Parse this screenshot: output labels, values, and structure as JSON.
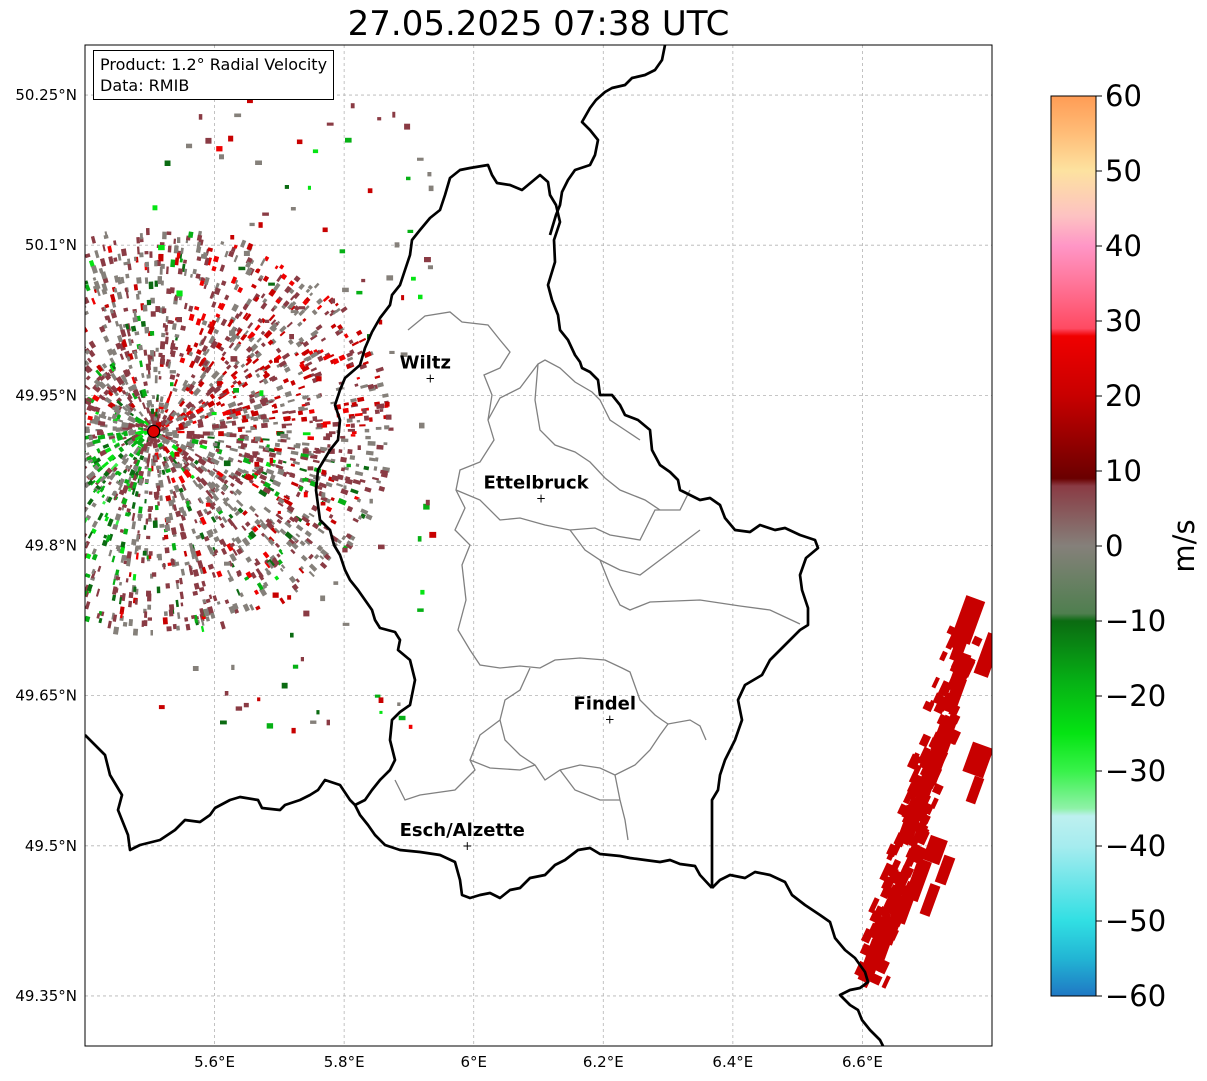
{
  "title": "27.05.2025 07:38 UTC",
  "info": {
    "product": "Product: 1.2° Radial Velocity",
    "source": "Data: RMIB"
  },
  "map": {
    "lon_range": [
      5.4,
      6.8
    ],
    "lat_range": [
      49.3,
      50.3
    ],
    "lon_ticks": [
      {
        "value": 5.6,
        "label": "5.6°E"
      },
      {
        "value": 5.8,
        "label": "5.8°E"
      },
      {
        "value": 6.0,
        "label": "6°E"
      },
      {
        "value": 6.2,
        "label": "6.2°E"
      },
      {
        "value": 6.4,
        "label": "6.4°E"
      },
      {
        "value": 6.6,
        "label": "6.6°E"
      }
    ],
    "lat_ticks": [
      {
        "value": 50.25,
        "label": "50.25°N"
      },
      {
        "value": 50.1,
        "label": "50.1°N"
      },
      {
        "value": 49.95,
        "label": "49.95°N"
      },
      {
        "value": 49.8,
        "label": "49.8°N"
      },
      {
        "value": 49.65,
        "label": "49.65°N"
      },
      {
        "value": 49.5,
        "label": "49.5°N"
      },
      {
        "value": 49.35,
        "label": "49.35°N"
      }
    ],
    "grid": true,
    "cities": [
      {
        "name": "Wiltz",
        "lon": 5.933,
        "lat": 49.967
      },
      {
        "name": "Ettelbruck",
        "lon": 6.104,
        "lat": 49.847
      },
      {
        "name": "Findel",
        "lon": 6.21,
        "lat": 49.626
      },
      {
        "name": "Esch/Alzette",
        "lon": 5.99,
        "lat": 49.5
      }
    ],
    "radar_site": {
      "lon": 5.506,
      "lat": 49.914
    }
  },
  "colorbar": {
    "label": "m/s",
    "min": -60,
    "max": 60,
    "ticks": [
      {
        "value": 60,
        "label": "60"
      },
      {
        "value": 50,
        "label": "50"
      },
      {
        "value": 40,
        "label": "40"
      },
      {
        "value": 30,
        "label": "30"
      },
      {
        "value": 20,
        "label": "20"
      },
      {
        "value": 10,
        "label": "10"
      },
      {
        "value": 0,
        "label": "0"
      },
      {
        "value": -10,
        "label": "−10"
      },
      {
        "value": -20,
        "label": "−20"
      },
      {
        "value": -30,
        "label": "−30"
      },
      {
        "value": -40,
        "label": "−40"
      },
      {
        "value": -50,
        "label": "−50"
      },
      {
        "value": -60,
        "label": "−60"
      }
    ],
    "stops": [
      {
        "v": -60,
        "c": "#1f78c4"
      },
      {
        "v": -55,
        "c": "#22b5d4"
      },
      {
        "v": -50,
        "c": "#31dfe3"
      },
      {
        "v": -40,
        "c": "#a6ecef"
      },
      {
        "v": -36,
        "c": "#bdf0ef"
      },
      {
        "v": -35,
        "c": "#8ff2a8"
      },
      {
        "v": -30,
        "c": "#38f24a"
      },
      {
        "v": -25,
        "c": "#05e413"
      },
      {
        "v": -18,
        "c": "#06b015"
      },
      {
        "v": -10,
        "c": "#0b6b12"
      },
      {
        "v": -9,
        "c": "#4f7f4f"
      },
      {
        "v": 0,
        "c": "#85807a"
      },
      {
        "v": 8,
        "c": "#8a3b44"
      },
      {
        "v": 9,
        "c": "#6a0000"
      },
      {
        "v": 20,
        "c": "#c80000"
      },
      {
        "v": 28,
        "c": "#f00000"
      },
      {
        "v": 29,
        "c": "#ff4a62"
      },
      {
        "v": 35,
        "c": "#ff7599"
      },
      {
        "v": 40,
        "c": "#ff96c6"
      },
      {
        "v": 44,
        "c": "#fdc2c2"
      },
      {
        "v": 50,
        "c": "#fde2a0"
      },
      {
        "v": 55,
        "c": "#ffbd78"
      },
      {
        "v": 60,
        "c": "#ff9c55"
      }
    ]
  },
  "colors": {
    "border": "#000000",
    "canton": "#808080",
    "grid": "#b4b4b4",
    "radar_site_fill": "#e00000"
  }
}
